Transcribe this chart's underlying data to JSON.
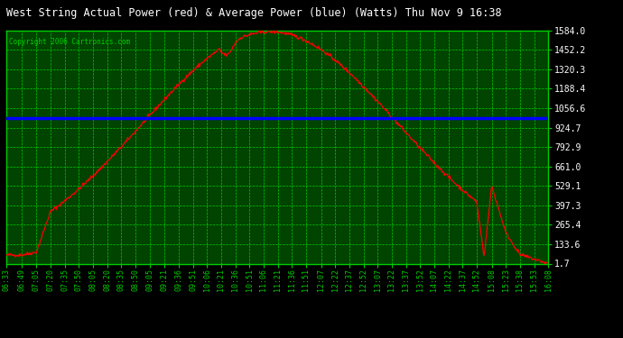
{
  "title": "West String Actual Power (red) & Average Power (blue) (Watts) Thu Nov 9 16:38",
  "copyright": "Copyright 2006 Cartronics.com",
  "bg_color": "#000000",
  "plot_bg_color": "#004400",
  "grid_color": "#00CC00",
  "grid_minor_color": "#006600",
  "red_line_color": "#FF0000",
  "blue_line_color": "#0000FF",
  "title_bg_color": "#000000",
  "title_color": "#FFFFFF",
  "ytick_color": "#000000",
  "average_power": 990.0,
  "yticks": [
    1.7,
    133.6,
    265.4,
    397.3,
    529.1,
    661.0,
    792.9,
    924.7,
    1056.6,
    1188.4,
    1320.3,
    1452.2,
    1584.0
  ],
  "xlabels": [
    "06:33",
    "06:49",
    "07:05",
    "07:20",
    "07:35",
    "07:50",
    "08:05",
    "08:20",
    "08:35",
    "08:50",
    "09:05",
    "09:21",
    "09:36",
    "09:51",
    "10:06",
    "10:21",
    "10:36",
    "10:51",
    "11:06",
    "11:21",
    "11:36",
    "11:51",
    "12:07",
    "12:22",
    "12:37",
    "12:52",
    "13:07",
    "13:22",
    "13:37",
    "13:52",
    "14:07",
    "14:22",
    "14:37",
    "14:52",
    "15:08",
    "15:23",
    "15:38",
    "15:53",
    "16:08"
  ]
}
